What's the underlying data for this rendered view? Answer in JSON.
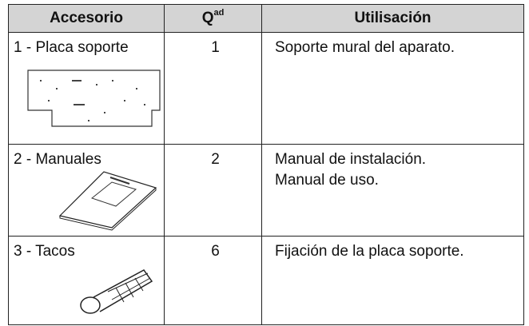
{
  "table": {
    "header": [
      "Accesorio",
      {
        "text": "Q",
        "superscript": "ad"
      },
      "Utilisación"
    ],
    "rows": [
      [
        "1 - Placa soporte",
        "1",
        [
          "Soporte mural del aparato."
        ]
      ],
      [
        "2 - Manuales",
        "2",
        [
          "Manual de instalación.",
          "Manual de uso."
        ]
      ],
      [
        "3 - Tacos",
        "6",
        [
          "Fijación de la placa soporte."
        ]
      ]
    ]
  }
}
